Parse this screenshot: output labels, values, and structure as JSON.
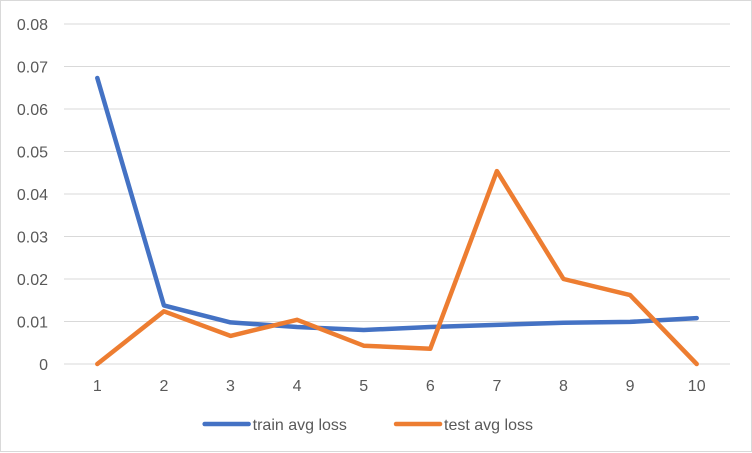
{
  "chart_data": {
    "type": "line",
    "title": "",
    "xlabel": "",
    "ylabel": "",
    "categories": [
      "1",
      "2",
      "3",
      "4",
      "5",
      "6",
      "7",
      "8",
      "9",
      "10"
    ],
    "ylim": [
      0,
      0.08
    ],
    "yticks": [
      "0",
      "0.01",
      "0.02",
      "0.03",
      "0.04",
      "0.05",
      "0.06",
      "0.07",
      "0.08"
    ],
    "grid": true,
    "legend_position": "bottom",
    "series": [
      {
        "name": "train avg loss",
        "color": "#4472c4",
        "values": [
          0.0673,
          0.0138,
          0.0098,
          0.0087,
          0.008,
          0.0087,
          0.0092,
          0.0097,
          0.0099,
          0.0108
        ]
      },
      {
        "name": "test avg loss",
        "color": "#ed7d31",
        "values": [
          0.0,
          0.0124,
          0.0066,
          0.0104,
          0.0043,
          0.0036,
          0.0454,
          0.02,
          0.0162,
          0.0
        ]
      }
    ]
  }
}
